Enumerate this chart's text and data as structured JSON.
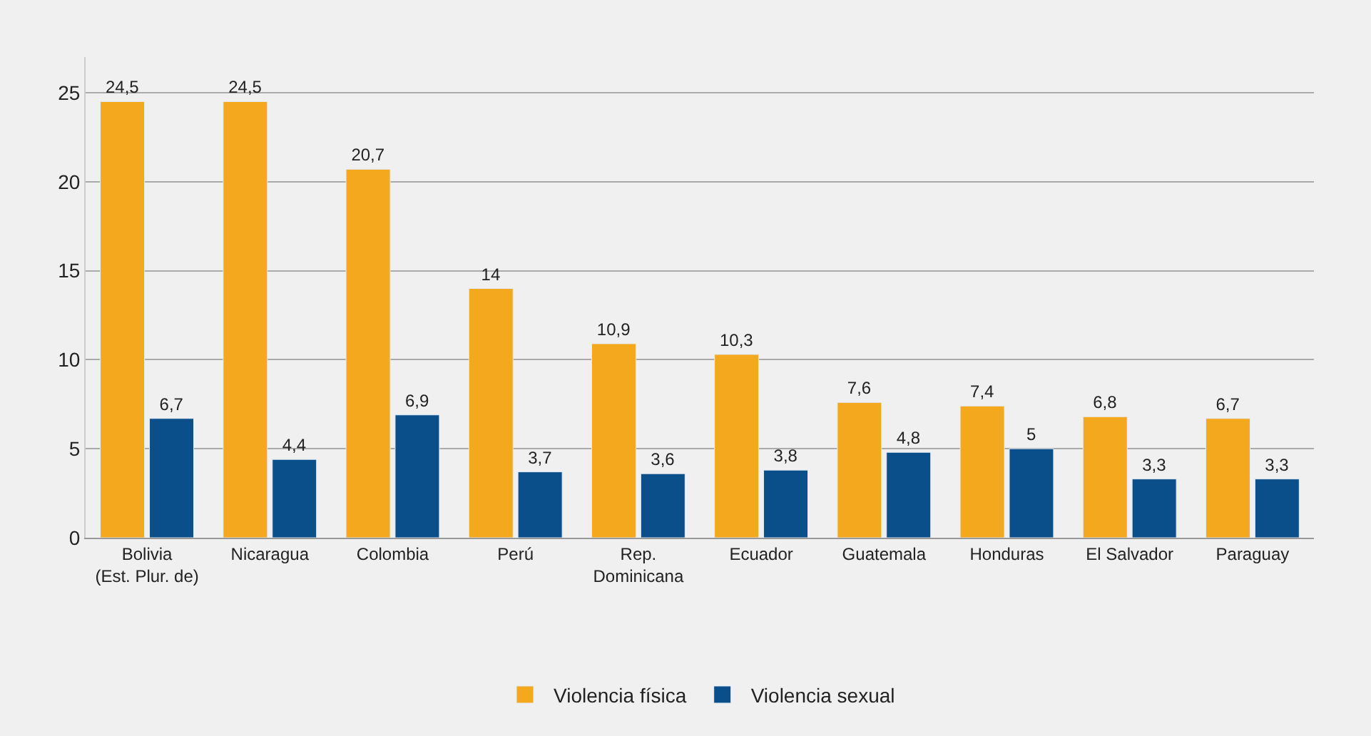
{
  "chart_data": {
    "type": "bar",
    "categories": [
      "Bolivia\n(Est. Plur. de)",
      "Nicaragua",
      "Colombia",
      "Perú",
      "Rep.\nDominicana",
      "Ecuador",
      "Guatemala",
      "Honduras",
      "El Salvador",
      "Paraguay"
    ],
    "series": [
      {
        "name": "Violencia física",
        "color": "#f4a81d",
        "values": [
          24.5,
          24.5,
          20.7,
          14,
          10.9,
          10.3,
          7.6,
          7.4,
          6.8,
          6.7
        ],
        "value_labels": [
          "24,5",
          "24,5",
          "20,7",
          "14",
          "10,9",
          "10,3",
          "7,6",
          "7,4",
          "6,8",
          "6,7"
        ]
      },
      {
        "name": "Violencia sexual",
        "color": "#0b4f8a",
        "values": [
          6.7,
          4.4,
          6.9,
          3.7,
          3.6,
          3.8,
          4.8,
          5,
          3.3,
          3.3
        ],
        "value_labels": [
          "6,7",
          "4,4",
          "6,9",
          "3,7",
          "3,6",
          "3,8",
          "4,8",
          "5",
          "3,3",
          "3,3"
        ]
      }
    ],
    "ylim": [
      0,
      27
    ],
    "yticks": [
      0,
      5,
      10,
      15,
      20,
      25
    ],
    "grid": "y",
    "legend": "bottom"
  }
}
